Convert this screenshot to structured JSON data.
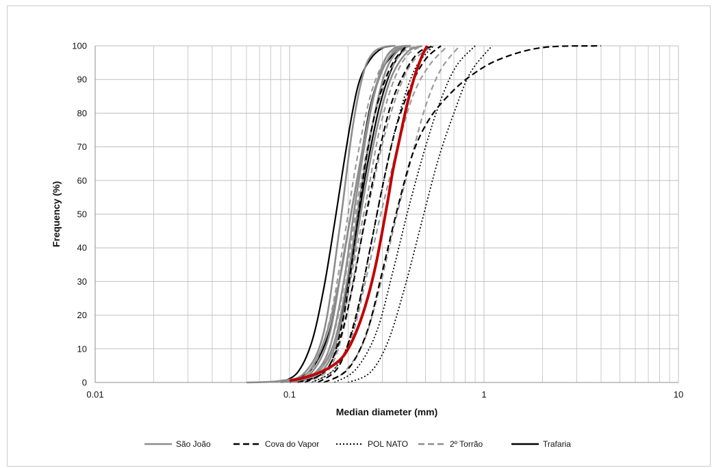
{
  "chart_data": {
    "type": "line",
    "title": "",
    "xlabel": "Median diameter (mm)",
    "ylabel": "Frequency (%)",
    "x_scale": "log",
    "xlim": [
      0.01,
      10
    ],
    "ylim": [
      0,
      100
    ],
    "x_ticks": [
      0.01,
      0.1,
      1,
      10
    ],
    "x_tick_labels": [
      "0.01",
      "0.1",
      "1",
      "10"
    ],
    "y_ticks": [
      0,
      10,
      20,
      30,
      40,
      50,
      60,
      70,
      80,
      90,
      100
    ],
    "y_tick_labels": [
      "0",
      "10",
      "20",
      "30",
      "40",
      "50",
      "60",
      "70",
      "80",
      "90",
      "100"
    ],
    "grid": {
      "major": true,
      "minor_log": true,
      "color": "#bfbfbf"
    },
    "legend_position": "bottom",
    "legend": [
      {
        "label": "São João",
        "color": "#8c8c8c",
        "style": "solid"
      },
      {
        "label": "Cova do Vapor",
        "color": "#000000",
        "style": "dashed"
      },
      {
        "label": "POL NATO",
        "color": "#000000",
        "style": "dotted"
      },
      {
        "label": "2º Torrão",
        "color": "#8c8c8c",
        "style": "dashed"
      },
      {
        "label": "Trafaria",
        "color": "#000000",
        "style": "solid"
      }
    ],
    "styles": {
      "São João": {
        "color": "#8c8c8c",
        "dash": "",
        "width": 2.6
      },
      "Cova do Vapor": {
        "color": "#000000",
        "dash": "9 5",
        "width": 2.2
      },
      "POL NATO": {
        "color": "#000000",
        "dash": "2 3",
        "width": 1.8
      },
      "2º Torrão": {
        "color": "#9a9a9a",
        "dash": "8 5",
        "width": 2.2
      },
      "Trafaria": {
        "color": "#000000",
        "dash": "",
        "width": 2.2
      },
      "Mean": {
        "color": "#c00000",
        "dash": "",
        "width": 4
      }
    },
    "series": [
      {
        "group": "São João",
        "x": [
          0.06,
          0.09,
          0.12,
          0.15,
          0.18,
          0.21,
          0.24,
          0.27,
          0.31,
          0.35
        ],
        "y": [
          0,
          0.5,
          3,
          15,
          45,
          75,
          92,
          98,
          99.7,
          100
        ]
      },
      {
        "group": "São João",
        "x": [
          0.09,
          0.12,
          0.15,
          0.18,
          0.2,
          0.23,
          0.27,
          0.31,
          0.36,
          0.42
        ],
        "y": [
          0,
          2,
          12,
          30,
          45,
          65,
          85,
          96,
          99.5,
          100
        ]
      },
      {
        "group": "São João",
        "x": [
          0.1,
          0.13,
          0.16,
          0.19,
          0.22,
          0.26,
          0.3,
          0.34,
          0.4
        ],
        "y": [
          0,
          2,
          10,
          30,
          55,
          80,
          94,
          99,
          100
        ]
      },
      {
        "group": "São João",
        "x": [
          0.11,
          0.14,
          0.17,
          0.2,
          0.23,
          0.27,
          0.31,
          0.36,
          0.42
        ],
        "y": [
          0,
          3,
          12,
          32,
          55,
          78,
          92,
          98.5,
          100
        ]
      },
      {
        "group": "São João",
        "x": [
          0.11,
          0.15,
          0.18,
          0.21,
          0.24,
          0.28,
          0.33,
          0.4,
          0.48
        ],
        "y": [
          0,
          4,
          15,
          35,
          55,
          75,
          90,
          98,
          100
        ]
      },
      {
        "group": "São João",
        "x": [
          0.1,
          0.13,
          0.16,
          0.19,
          0.23,
          0.27,
          0.32,
          0.38
        ],
        "y": [
          0,
          3,
          14,
          38,
          65,
          85,
          96,
          100
        ]
      },
      {
        "group": "Cova do Vapor",
        "x": [
          0.11,
          0.15,
          0.18,
          0.21,
          0.24,
          0.28,
          0.33,
          0.39,
          0.46,
          0.55
        ],
        "y": [
          0,
          3,
          12,
          28,
          46,
          65,
          82,
          92,
          98,
          100
        ]
      },
      {
        "group": "Cova do Vapor",
        "x": [
          0.14,
          0.18,
          0.22,
          0.26,
          0.3,
          0.35,
          0.42,
          0.5,
          0.6
        ],
        "y": [
          0,
          5,
          20,
          40,
          58,
          75,
          88,
          96,
          100
        ]
      },
      {
        "group": "Cova do Vapor",
        "x": [
          0.15,
          0.2,
          0.25,
          0.3,
          0.36,
          0.43,
          0.52,
          0.65,
          0.85,
          1.2,
          2.0,
          4.0
        ],
        "y": [
          0,
          4,
          15,
          33,
          52,
          68,
          78,
          85,
          91,
          96,
          99.5,
          100
        ]
      },
      {
        "group": "Cova do Vapor",
        "x": [
          0.12,
          0.16,
          0.19,
          0.22,
          0.25,
          0.29,
          0.34,
          0.4
        ],
        "y": [
          0,
          5,
          20,
          45,
          68,
          85,
          95,
          100
        ]
      },
      {
        "group": "POL NATO",
        "x": [
          0.17,
          0.22,
          0.28,
          0.34,
          0.41,
          0.5,
          0.6,
          0.72,
          0.9
        ],
        "y": [
          0,
          4,
          15,
          33,
          52,
          70,
          84,
          94,
          100
        ]
      },
      {
        "group": "POL NATO",
        "x": [
          0.2,
          0.26,
          0.32,
          0.39,
          0.48,
          0.58,
          0.7,
          0.85,
          1.1
        ],
        "y": [
          0,
          3,
          12,
          28,
          48,
          66,
          80,
          92,
          100
        ]
      },
      {
        "group": "POL NATO",
        "x": [
          0.13,
          0.17,
          0.21,
          0.25,
          0.3,
          0.36,
          0.44,
          0.55
        ],
        "y": [
          0,
          4,
          15,
          35,
          58,
          78,
          93,
          100
        ]
      },
      {
        "group": "2º Torrão",
        "x": [
          0.11,
          0.14,
          0.17,
          0.2,
          0.23,
          0.27,
          0.32,
          0.38,
          0.46
        ],
        "y": [
          0,
          3,
          15,
          36,
          58,
          78,
          91,
          98,
          100
        ]
      },
      {
        "group": "2º Torrão",
        "x": [
          0.12,
          0.16,
          0.19,
          0.22,
          0.26,
          0.31,
          0.37,
          0.44,
          0.55
        ],
        "y": [
          0,
          4,
          16,
          35,
          55,
          74,
          88,
          96,
          100
        ]
      },
      {
        "group": "2º Torrão",
        "x": [
          0.13,
          0.17,
          0.21,
          0.25,
          0.3,
          0.36,
          0.43,
          0.52,
          0.65
        ],
        "y": [
          0,
          4,
          14,
          32,
          52,
          70,
          85,
          94,
          100
        ]
      },
      {
        "group": "2º Torrão",
        "x": [
          0.15,
          0.19,
          0.24,
          0.29,
          0.35,
          0.42,
          0.5,
          0.6,
          0.75
        ],
        "y": [
          0,
          3,
          12,
          28,
          48,
          66,
          82,
          93,
          100
        ]
      },
      {
        "group": "2º Torrão",
        "x": [
          0.1,
          0.13,
          0.16,
          0.19,
          0.22,
          0.26,
          0.31,
          0.37
        ],
        "y": [
          0,
          4,
          18,
          42,
          65,
          85,
          96,
          100
        ]
      },
      {
        "group": "2º Torrão",
        "x": [
          0.11,
          0.14,
          0.18,
          0.21,
          0.25,
          0.29,
          0.34,
          0.4,
          0.48
        ],
        "y": [
          0,
          3,
          14,
          33,
          55,
          75,
          89,
          97,
          100
        ]
      },
      {
        "group": "Trafaria",
        "x": [
          0.09,
          0.11,
          0.13,
          0.15,
          0.17,
          0.19,
          0.21,
          0.23,
          0.26,
          0.3,
          0.35
        ],
        "y": [
          0,
          3,
          12,
          28,
          47,
          65,
          80,
          90,
          96,
          99.3,
          100
        ]
      },
      {
        "group": "Trafaria",
        "x": [
          0.1,
          0.13,
          0.16,
          0.18,
          0.2,
          0.23,
          0.26,
          0.3,
          0.36,
          0.42
        ],
        "y": [
          0,
          4,
          15,
          30,
          45,
          65,
          82,
          93,
          98.5,
          100
        ]
      },
      {
        "group": "Trafaria",
        "x": [
          0.11,
          0.14,
          0.17,
          0.2,
          0.22,
          0.25,
          0.29,
          0.34,
          0.4
        ],
        "y": [
          0,
          3,
          12,
          30,
          45,
          64,
          82,
          94,
          100
        ]
      },
      {
        "group": "Mean",
        "x": [
          0.1,
          0.12,
          0.15,
          0.18,
          0.2,
          0.22,
          0.24,
          0.26,
          0.28,
          0.3,
          0.32,
          0.34,
          0.37,
          0.4,
          0.44,
          0.48,
          0.51
        ],
        "y": [
          0.5,
          1.5,
          3.5,
          6.5,
          10,
          15,
          21,
          28,
          36,
          45,
          54,
          63,
          73,
          82,
          91,
          97,
          100
        ]
      }
    ]
  }
}
